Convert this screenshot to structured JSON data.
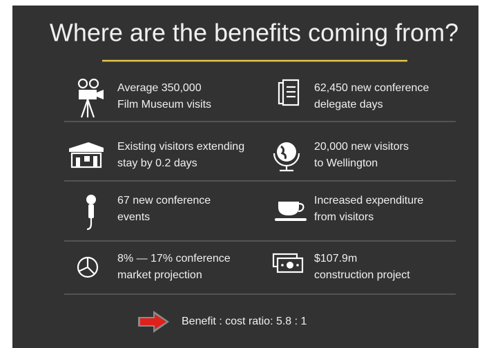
{
  "title": "Where are the benefits coming from?",
  "items": [
    {
      "lines": [
        "Average 350,000",
        "Film Museum visits"
      ]
    },
    {
      "lines": [
        "62,450 new  conference",
        "delegate days"
      ]
    },
    {
      "lines": [
        "Existing visitors extending",
        "stay by 0.2 days"
      ]
    },
    {
      "lines": [
        "20,000 new visitors",
        "to Wellington"
      ]
    },
    {
      "lines": [
        "67 new conference",
        "events"
      ]
    },
    {
      "lines": [
        "Increased expenditure",
        "from visitors"
      ]
    },
    {
      "lines": [
        "8% — 17% conference",
        "market projection"
      ]
    },
    {
      "lines": [
        "$107.9m",
        "construction project"
      ]
    }
  ],
  "footer": "Benefit : cost ratio:  5.8 : 1"
}
